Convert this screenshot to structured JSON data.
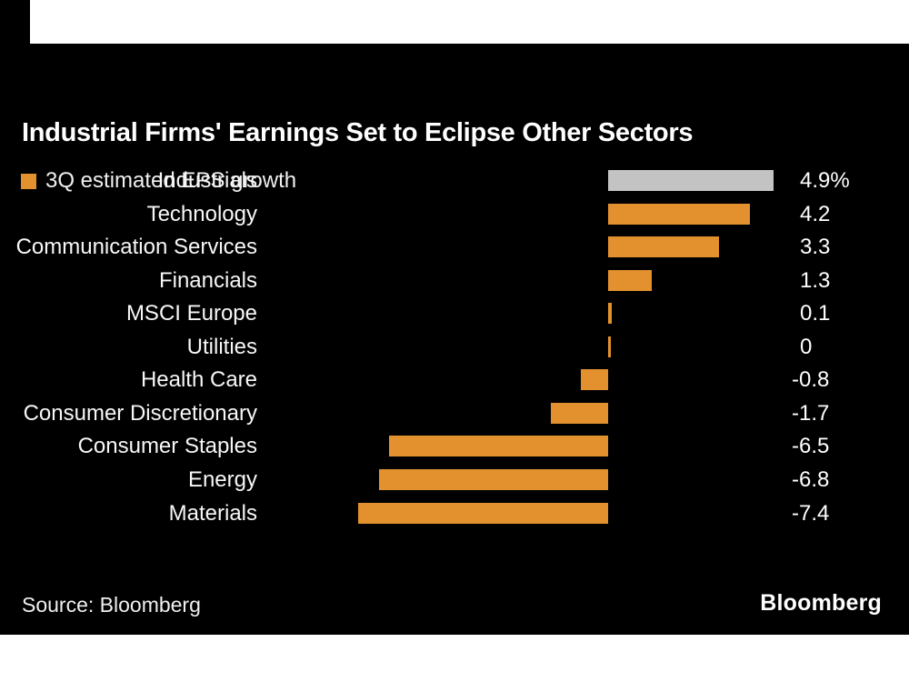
{
  "page": {
    "background": "#ffffff",
    "panel_background": "#000000"
  },
  "header": {
    "title": "Industrial Firms' Earnings Set to Eclipse Other Sectors"
  },
  "legend": {
    "label": "3Q estimated EPS growth",
    "swatch_color": "#e2912e"
  },
  "chart_data": {
    "type": "bar",
    "orientation": "horizontal",
    "title": "Industrial Firms' Earnings Set to Eclipse Other Sectors",
    "series_label": "3Q estimated EPS growth",
    "categories": [
      "Industrials",
      "Technology",
      "Communication Services",
      "Financials",
      "MSCI Europe",
      "Utilities",
      "Health Care",
      "Consumer Discretionary",
      "Consumer Staples",
      "Energy",
      "Materials"
    ],
    "values": [
      4.9,
      4.2,
      3.3,
      1.3,
      0.1,
      0,
      -0.8,
      -1.7,
      -6.5,
      -6.8,
      -7.4
    ],
    "value_labels": [
      "4.9%",
      "4.2",
      "3.3",
      "1.3",
      "0.1",
      "0",
      "-0.8",
      "-1.7",
      "-6.5",
      "-6.8",
      "-7.4"
    ],
    "unit": "%",
    "xlim": [
      -7.4,
      4.9
    ],
    "grid": false,
    "legend_position": "top-left",
    "bar_color_default": "#e2912e",
    "bar_color_highlight": "#c3c3c3",
    "bar_colors": [
      "#c3c3c3",
      "#e2912e",
      "#e2912e",
      "#e2912e",
      "#e2912e",
      "#e2912e",
      "#e2912e",
      "#e2912e",
      "#e2912e",
      "#e2912e",
      "#e2912e"
    ]
  },
  "footer": {
    "source": "Source: Bloomberg",
    "brand": "Bloomberg"
  }
}
